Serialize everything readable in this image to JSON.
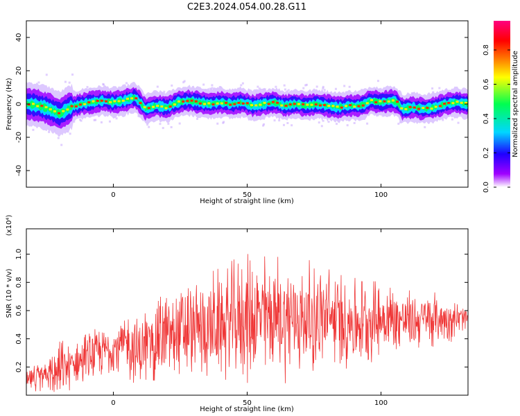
{
  "title": "C2E3.2024.054.00.28.G11",
  "chart_data": [
    {
      "type": "heatmap",
      "name": "spectrogram",
      "xlabel": "Height of straight line (km)",
      "ylabel": "Frequency (Hz)",
      "xlim": [
        -32.5,
        132.5
      ],
      "ylim": [
        -50,
        50
      ],
      "xticks": [
        0,
        50,
        100
      ],
      "yticks": [
        -40,
        -20,
        0,
        20,
        40
      ],
      "grid": false,
      "colorbar": {
        "label": "Normalized spectral amplitude",
        "range": [
          0,
          0.97
        ],
        "ticks": [
          "0.0",
          "0.2",
          "0.4",
          "0.6",
          "0.8"
        ],
        "colors": [
          "#ffffff",
          "#a000ff",
          "#1e00ff",
          "#00d7ff",
          "#00ff50",
          "#ffff00",
          "#ff7000",
          "#ff0000",
          "#ff0080"
        ]
      },
      "ridge": {
        "x": [
          -32,
          -28,
          -24,
          -20,
          -16,
          -12,
          -8,
          -4,
          0,
          4,
          8,
          10,
          12,
          16,
          20,
          24,
          28,
          32,
          36,
          40,
          44,
          48,
          52,
          56,
          60,
          64,
          68,
          72,
          76,
          80,
          84,
          88,
          92,
          94,
          96,
          100,
          104,
          106,
          108,
          112,
          116,
          120,
          124,
          128,
          132
        ],
        "center": [
          0,
          -1,
          -3,
          -6,
          -2,
          0,
          1,
          2,
          1,
          2,
          4,
          1,
          -3,
          -1,
          -2,
          1,
          2,
          1,
          0,
          1,
          0,
          1,
          -1,
          0,
          1,
          -1,
          0,
          -1,
          0,
          -1,
          -2,
          -1,
          -1,
          0,
          2,
          1,
          2,
          1,
          -3,
          -2,
          -3,
          -2,
          0,
          1,
          0
        ],
        "halfwidth_hz": 4
      }
    },
    {
      "type": "line",
      "name": "snr",
      "xlabel": "Height of straight line (km)",
      "ylabel": "SNR (10 * v/v)",
      "y_multiplier": "(x10⁴)",
      "xlim": [
        -32.5,
        132.5
      ],
      "ylim": [
        0,
        1.18
      ],
      "xticks": [
        0,
        50,
        100
      ],
      "yticks": [
        "0.2",
        "0.4",
        "0.6",
        "0.8",
        "1.0"
      ],
      "color": "#ee2b2b",
      "envelope": {
        "x": [
          -32,
          -25,
          -20,
          -15,
          -10,
          -5,
          0,
          5,
          10,
          15,
          20,
          30,
          40,
          50,
          60,
          70,
          80,
          90,
          100,
          110,
          120,
          132
        ],
        "mean": [
          0.1,
          0.14,
          0.18,
          0.22,
          0.26,
          0.3,
          0.34,
          0.36,
          0.3,
          0.4,
          0.42,
          0.46,
          0.5,
          0.55,
          0.56,
          0.54,
          0.55,
          0.52,
          0.55,
          0.53,
          0.54,
          0.54
        ],
        "amp": [
          0.1,
          0.12,
          0.25,
          0.16,
          0.22,
          0.2,
          0.22,
          0.26,
          0.3,
          0.36,
          0.38,
          0.4,
          0.44,
          0.52,
          0.5,
          0.46,
          0.42,
          0.38,
          0.32,
          0.24,
          0.22,
          0.12
        ]
      }
    }
  ]
}
